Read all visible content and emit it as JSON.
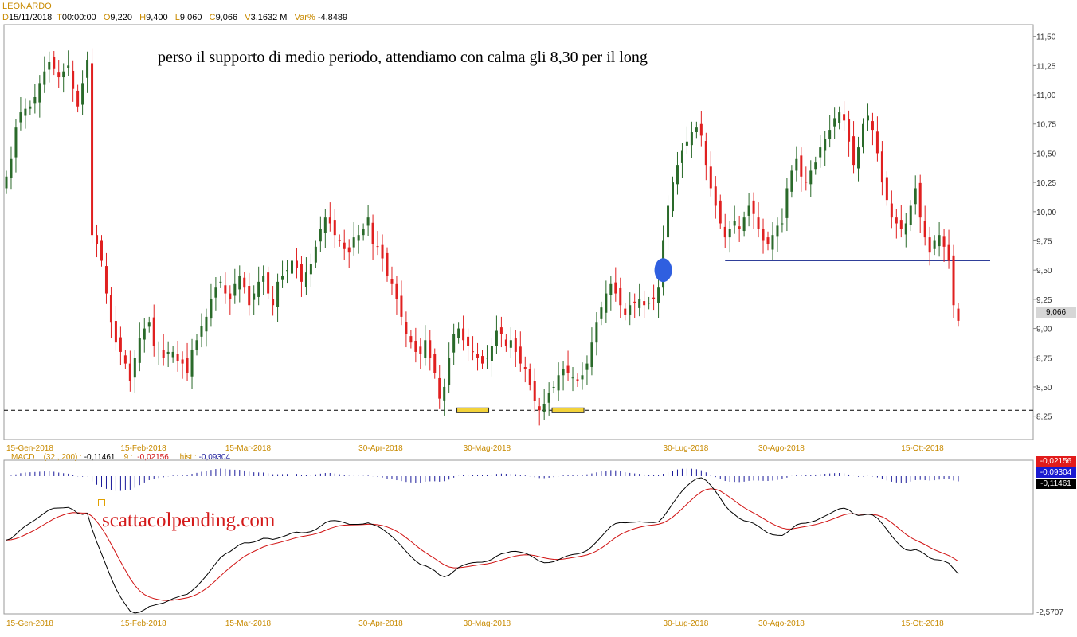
{
  "header": {
    "symbol": "LEONARDO",
    "d_label": "D",
    "date": "15/11/2018",
    "t_label": "T",
    "time": "00:00:00",
    "o_label": "O",
    "open": "9,220",
    "h_label": "H",
    "high": "9,400",
    "l_label": "L",
    "low": "9,060",
    "c_label": "C",
    "close": "9,066",
    "v_label": "V",
    "volume": "3,1632 M",
    "var_label": "Var%",
    "var": "-4,8489"
  },
  "annotation": "perso il supporto di medio periodo, attendiamo con calma gli 8,30 per il long",
  "watermark": "scattacolpending.com",
  "last_price": "9,066",
  "macd": {
    "label": "MACD",
    "params": "(32 , 200) :",
    "macd_value": "-0,11461",
    "signal_label": "9 :",
    "signal_value": "-0,02156",
    "hist_label": "hist :",
    "hist_value": "-0,09304",
    "box_signal": "-0,02156",
    "box_hist": "-0,09304",
    "box_macd": "-0,11461",
    "axis_low": "-2,5707"
  },
  "colors": {
    "up": "#2a6a2a",
    "down": "#e02020",
    "support": "#2f3f9a",
    "marker": "#2f5fe0",
    "macd_line": "#000000",
    "signal_line": "#d01010",
    "hist": "#1a1a9a"
  },
  "chart_data": {
    "type": "candlestick",
    "price_axis": {
      "ylim": [
        8.05,
        11.6
      ],
      "ticks": [
        "11,50",
        "11,25",
        "11,00",
        "10,75",
        "10,50",
        "10,25",
        "10,00",
        "9,75",
        "9,50",
        "9,25",
        "9,00",
        "8,75",
        "8,50",
        "8,25"
      ]
    },
    "x_tick_labels": [
      "15-Gen-2018",
      "15-Feb-2018",
      "15-Mar-2018",
      "30-Apr-2018",
      "30-Mag-2018",
      "30-Lug-2018",
      "30-Ago-2018",
      "15-Ott-2018"
    ],
    "x_tick_index": [
      0,
      24,
      46,
      74,
      96,
      138,
      158,
      188
    ],
    "support_level": 9.58,
    "dashed_level": 8.3,
    "highlighted_lows_index": [
      98,
      118
    ],
    "marker": {
      "index": 138,
      "price": 9.5
    },
    "closes": [
      10.3,
      10.45,
      10.72,
      10.85,
      10.88,
      10.9,
      10.98,
      11.1,
      11.2,
      11.28,
      11.22,
      11.15,
      11.2,
      11.25,
      11.05,
      10.9,
      11.1,
      11.3,
      9.8,
      9.72,
      9.58,
      9.3,
      9.05,
      8.88,
      8.8,
      8.7,
      8.55,
      8.75,
      8.92,
      9.0,
      9.05,
      8.85,
      8.82,
      8.75,
      8.8,
      8.8,
      8.72,
      8.7,
      8.62,
      8.82,
      8.9,
      9.02,
      9.1,
      9.25,
      9.35,
      9.4,
      9.3,
      9.25,
      9.38,
      9.45,
      9.35,
      9.2,
      9.3,
      9.4,
      9.45,
      9.3,
      9.2,
      9.4,
      9.45,
      9.5,
      9.58,
      9.52,
      9.4,
      9.48,
      9.55,
      9.7,
      9.85,
      9.95,
      9.9,
      9.8,
      9.75,
      9.68,
      9.65,
      9.78,
      9.8,
      9.85,
      9.95,
      9.72,
      9.7,
      9.6,
      9.45,
      9.38,
      9.25,
      9.1,
      8.95,
      8.88,
      8.8,
      8.78,
      8.9,
      8.75,
      8.62,
      8.4,
      8.5,
      8.75,
      8.95,
      9.0,
      8.9,
      8.85,
      8.8,
      8.75,
      8.7,
      8.75,
      8.85,
      8.98,
      8.95,
      8.85,
      8.9,
      8.8,
      8.7,
      8.65,
      8.52,
      8.38,
      8.3,
      8.35,
      8.45,
      8.5,
      8.6,
      8.65,
      8.62,
      8.58,
      8.55,
      8.6,
      8.7,
      8.88,
      9.05,
      9.18,
      9.3,
      9.38,
      9.3,
      9.2,
      9.12,
      9.2,
      9.22,
      9.25,
      9.2,
      9.22,
      9.25,
      9.35,
      9.75,
      10.05,
      10.25,
      10.4,
      10.52,
      10.6,
      10.68,
      10.72,
      10.65,
      10.4,
      10.2,
      10.05,
      9.9,
      9.78,
      9.85,
      9.92,
      9.85,
      9.95,
      10.05,
      9.98,
      9.85,
      9.75,
      9.72,
      9.8,
      9.88,
      9.9,
      10.2,
      10.35,
      10.45,
      10.3,
      10.25,
      10.35,
      10.42,
      10.55,
      10.62,
      10.7,
      10.8,
      10.85,
      10.78,
      10.6,
      10.4,
      10.55,
      10.75,
      10.82,
      10.7,
      10.5,
      10.25,
      10.1,
      9.95,
      9.9,
      9.85,
      9.9,
      10.05,
      10.2,
      9.95,
      9.78,
      9.65,
      9.75,
      9.8,
      9.7,
      9.58,
      9.2,
      9.066
    ]
  }
}
